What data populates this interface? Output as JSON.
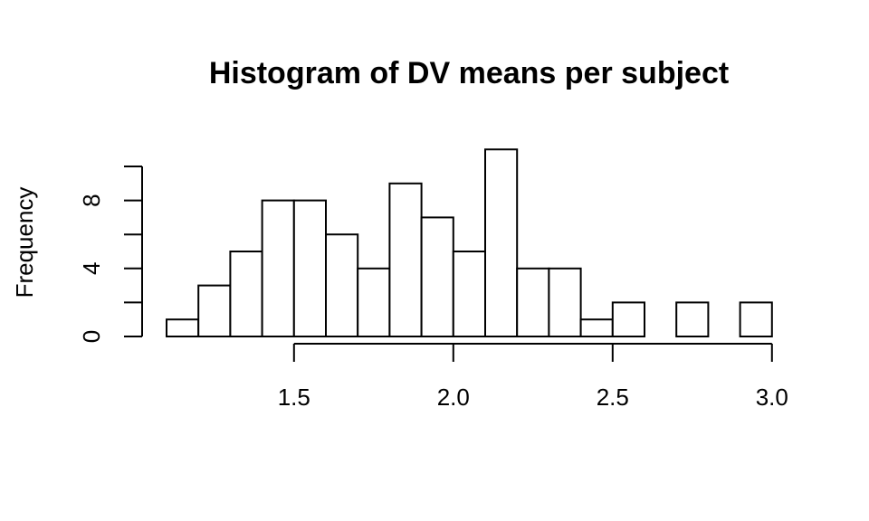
{
  "chart_data": {
    "type": "bar",
    "title": "Histogram of DV means per subject",
    "xlabel": "",
    "ylabel": "Frequency",
    "bin_edges": [
      1.1,
      1.2,
      1.3,
      1.4,
      1.5,
      1.6,
      1.7,
      1.8,
      1.9,
      2.0,
      2.1,
      2.2,
      2.3,
      2.4,
      2.5,
      2.6,
      2.7,
      2.8,
      2.9,
      3.0
    ],
    "values": [
      1,
      3,
      5,
      8,
      8,
      6,
      4,
      9,
      7,
      5,
      11,
      4,
      4,
      1,
      2,
      0,
      2,
      0,
      2
    ],
    "xlim": [
      1.1,
      3.0
    ],
    "ylim": [
      0,
      11
    ],
    "x_ticks": [
      1.5,
      2.0,
      2.5,
      3.0
    ],
    "x_tick_labels": [
      "1.5",
      "2.0",
      "2.5",
      "3.0"
    ],
    "y_ticks": [
      0,
      2,
      4,
      6,
      8,
      10
    ],
    "y_tick_labels": [
      "0",
      "",
      "4",
      "",
      "8",
      ""
    ],
    "grid": false,
    "legend": "none"
  }
}
